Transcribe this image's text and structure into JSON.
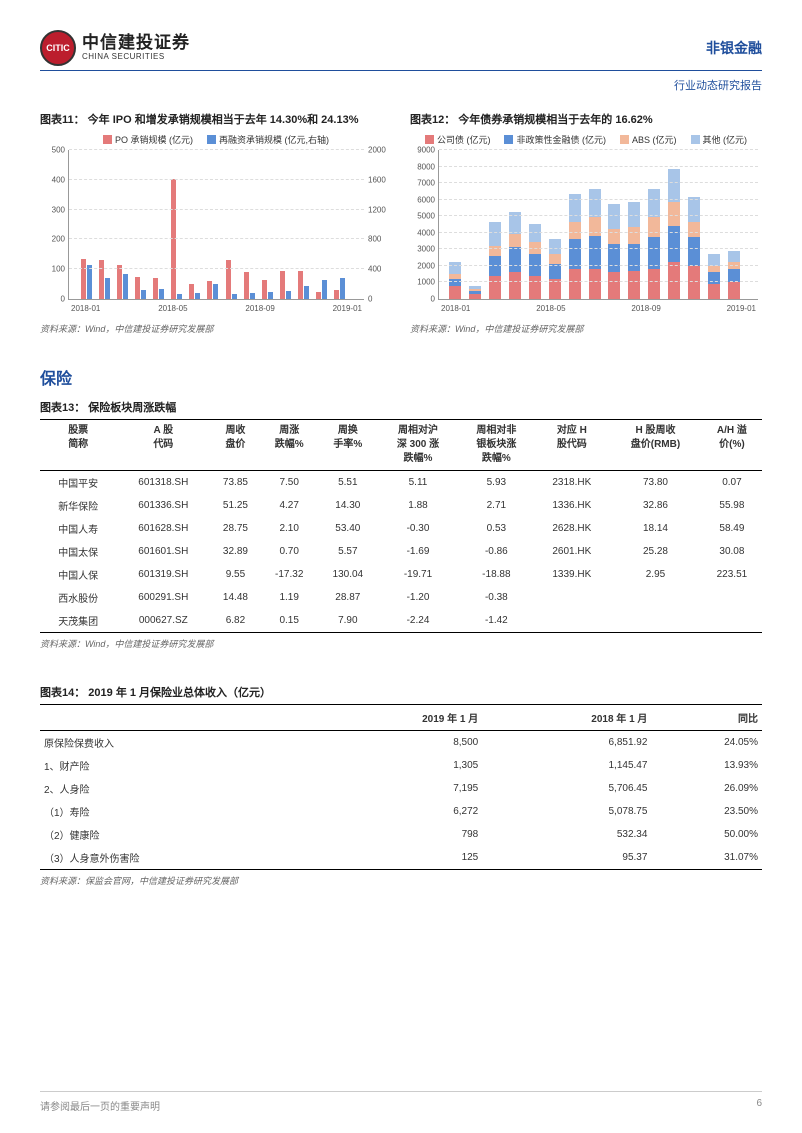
{
  "header": {
    "logo_cn": "中信建投证券",
    "logo_en": "CHINA SECURITIES",
    "logo_badge": "CITIC",
    "sector": "非银金融",
    "subreport": "行业动态研究报告"
  },
  "chart11": {
    "title": "图表11：  今年 IPO 和增发承销规模相当于去年 14.30%和 24.13%",
    "type": "bar-dual-axis",
    "legend": [
      {
        "label": "PO 承销规模 (亿元)",
        "color": "#e47a7a"
      },
      {
        "label": "再融资承销规模 (亿元,右轴)",
        "color": "#5b8fd6"
      }
    ],
    "y_left": {
      "min": 0,
      "max": 500,
      "step": 100,
      "ticks": [
        "0",
        "100",
        "200",
        "300",
        "400",
        "500"
      ]
    },
    "y_right": {
      "min": 0,
      "max": 2000,
      "step": 400,
      "ticks": [
        "0",
        "400",
        "800",
        "1200",
        "1600",
        "2000"
      ]
    },
    "x_labels": [
      "2018-01",
      "2018-05",
      "2018-09",
      "2019-01"
    ],
    "categories": [
      "2018-01",
      "2018-02",
      "2018-03",
      "2018-04",
      "2018-05",
      "2018-06",
      "2018-07",
      "2018-08",
      "2018-09",
      "2018-10",
      "2018-11",
      "2018-12",
      "2019-01",
      "2019-02",
      "2019-03"
    ],
    "series_po": [
      135,
      130,
      115,
      75,
      70,
      400,
      50,
      60,
      130,
      90,
      65,
      95,
      95,
      25,
      30
    ],
    "series_ref": [
      460,
      280,
      330,
      125,
      135,
      65,
      80,
      200,
      70,
      85,
      95,
      105,
      175,
      255,
      285
    ],
    "bar_color_po": "#e47a7a",
    "bar_color_ref": "#5b8fd6",
    "grid_color": "#dddddd",
    "source": "资料来源：Wind，中信建投证券研究发展部"
  },
  "chart12": {
    "title": "图表12：  今年债券承销规模相当于去年的 16.62%",
    "type": "stacked-bar",
    "legend": [
      {
        "label": "公司债 (亿元)",
        "color": "#e47a7a"
      },
      {
        "label": "非政策性金融债 (亿元)",
        "color": "#5b8fd6"
      },
      {
        "label": "ABS (亿元)",
        "color": "#f2b89a"
      },
      {
        "label": "其他 (亿元)",
        "color": "#a8c5e8"
      }
    ],
    "y": {
      "min": 0,
      "max": 9000,
      "step": 1000,
      "ticks": [
        "0",
        "1000",
        "2000",
        "3000",
        "4000",
        "5000",
        "6000",
        "7000",
        "8000",
        "9000"
      ]
    },
    "x_labels": [
      "2018-01",
      "2018-05",
      "2018-09",
      "2019-01"
    ],
    "categories": [
      "2018-01",
      "2018-02",
      "2018-03",
      "2018-04",
      "2018-05",
      "2018-06",
      "2018-07",
      "2018-08",
      "2018-09",
      "2018-10",
      "2018-11",
      "2018-12",
      "2019-01",
      "2019-02",
      "2019-03"
    ],
    "stacks": [
      [
        800,
        400,
        300,
        700
      ],
      [
        300,
        200,
        100,
        200
      ],
      [
        1400,
        1200,
        600,
        1400
      ],
      [
        1600,
        1500,
        800,
        1300
      ],
      [
        1400,
        1300,
        700,
        1100
      ],
      [
        1200,
        900,
        600,
        900
      ],
      [
        1800,
        1800,
        1000,
        1700
      ],
      [
        1800,
        2000,
        1100,
        1700
      ],
      [
        1600,
        1700,
        900,
        1500
      ],
      [
        1700,
        1600,
        1000,
        1500
      ],
      [
        1800,
        1900,
        1200,
        1700
      ],
      [
        2200,
        2200,
        1400,
        2000
      ],
      [
        2000,
        1700,
        900,
        1500
      ],
      [
        900,
        700,
        400,
        700
      ],
      [
        1000,
        800,
        400,
        700
      ]
    ],
    "colors": [
      "#e47a7a",
      "#5b8fd6",
      "#f2b89a",
      "#a8c5e8"
    ],
    "grid_color": "#dddddd",
    "source": "资料来源：Wind，中信建投证券研究发展部"
  },
  "section_insurance": "保险",
  "table13": {
    "title": "图表13：  保险板块周涨跌幅",
    "columns": [
      "股票\n简称",
      "A 股\n代码",
      "周收\n盘价",
      "周涨\n跌幅%",
      "周换\n手率%",
      "周相对沪\n深 300 涨\n跌幅%",
      "周相对非\n银板块涨\n跌幅%",
      "对应 H\n股代码",
      "H 股周收\n盘价(RMB)",
      "A/H 溢\n价(%)"
    ],
    "rows": [
      [
        "中国平安",
        "601318.SH",
        "73.85",
        "7.50",
        "5.51",
        "5.11",
        "5.93",
        "2318.HK",
        "73.80",
        "0.07"
      ],
      [
        "新华保险",
        "601336.SH",
        "51.25",
        "4.27",
        "14.30",
        "1.88",
        "2.71",
        "1336.HK",
        "32.86",
        "55.98"
      ],
      [
        "中国人寿",
        "601628.SH",
        "28.75",
        "2.10",
        "53.40",
        "-0.30",
        "0.53",
        "2628.HK",
        "18.14",
        "58.49"
      ],
      [
        "中国太保",
        "601601.SH",
        "32.89",
        "0.70",
        "5.57",
        "-1.69",
        "-0.86",
        "2601.HK",
        "25.28",
        "30.08"
      ],
      [
        "中国人保",
        "601319.SH",
        "9.55",
        "-17.32",
        "130.04",
        "-19.71",
        "-18.88",
        "1339.HK",
        "2.95",
        "223.51"
      ],
      [
        "西水股份",
        "600291.SH",
        "14.48",
        "1.19",
        "28.87",
        "-1.20",
        "-0.38",
        "",
        "",
        ""
      ],
      [
        "天茂集团",
        "000627.SZ",
        "6.82",
        "0.15",
        "7.90",
        "-2.24",
        "-1.42",
        "",
        "",
        ""
      ]
    ],
    "source": "资料来源：Wind，中信建投证券研究发展部"
  },
  "table14": {
    "title": "图表14：  2019 年 1 月保险业总体收入（亿元）",
    "columns": [
      "",
      "2019 年 1 月",
      "2018 年 1 月",
      "同比"
    ],
    "rows": [
      [
        "原保险保费收入",
        "8,500",
        "6,851.92",
        "24.05%"
      ],
      [
        "1、财产险",
        "1,305",
        "1,145.47",
        "13.93%"
      ],
      [
        "2、人身险",
        "7,195",
        "5,706.45",
        "26.09%"
      ],
      [
        "（1）寿险",
        "6,272",
        "5,078.75",
        "23.50%"
      ],
      [
        "（2）健康险",
        "798",
        "532.34",
        "50.00%"
      ],
      [
        "（3）人身意外伤害险",
        "125",
        "95.37",
        "31.07%"
      ]
    ],
    "source": "资料来源：保监会官网，中信建投证券研究发展部"
  },
  "footer": {
    "disclaimer": "请参阅最后一页的重要声明",
    "page": "6"
  }
}
